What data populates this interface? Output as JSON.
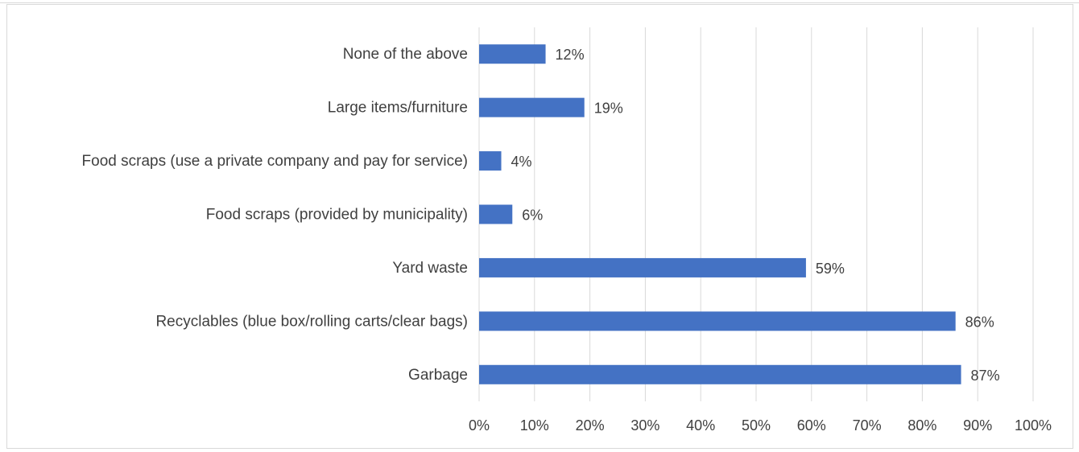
{
  "chart_data": {
    "type": "bar",
    "orientation": "horizontal",
    "categories": [
      "None of the above",
      "Large items/furniture",
      "Food scraps (use a private company and pay for service)",
      "Food scraps (provided by municipality)",
      "Yard waste",
      "Recyclables (blue box/rolling carts/clear bags)",
      "Garbage"
    ],
    "values": [
      12,
      19,
      4,
      6,
      59,
      86,
      87
    ],
    "data_labels": [
      "12%",
      "19%",
      "4%",
      "6%",
      "59%",
      "86%",
      "87%"
    ],
    "xlim": [
      0,
      100
    ],
    "xticks": [
      "0%",
      "10%",
      "20%",
      "30%",
      "40%",
      "50%",
      "60%",
      "70%",
      "80%",
      "90%",
      "100%"
    ],
    "grid": "vertical",
    "bar_color": "#4472c4",
    "legend": "none"
  }
}
